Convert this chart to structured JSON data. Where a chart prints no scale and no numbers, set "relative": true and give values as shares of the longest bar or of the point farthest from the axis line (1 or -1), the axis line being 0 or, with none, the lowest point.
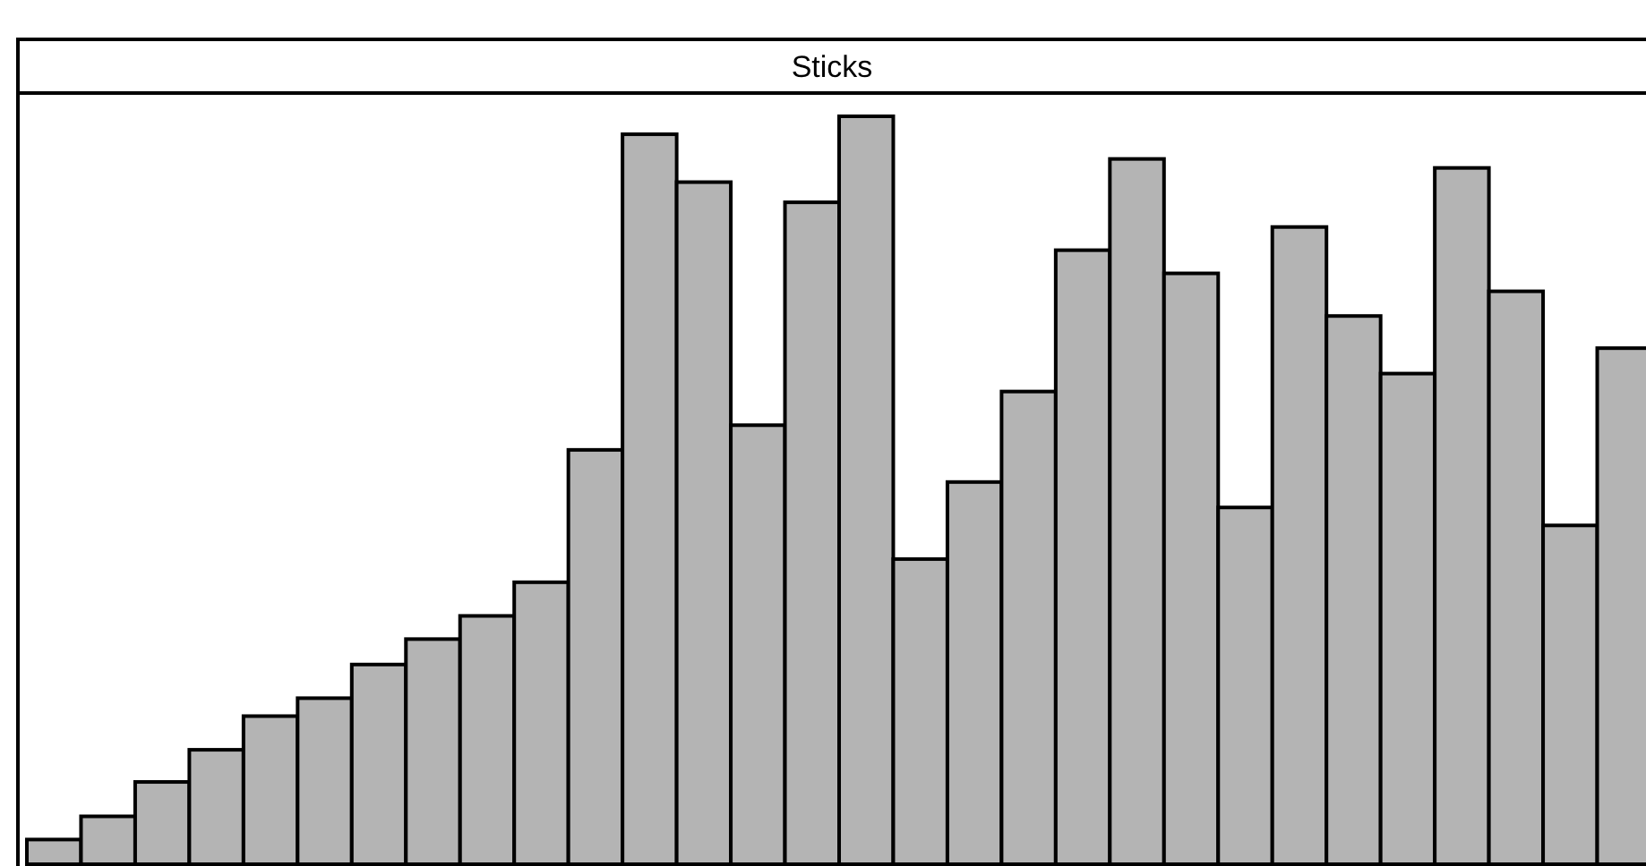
{
  "chart_data": {
    "type": "bar",
    "title": "Sticks",
    "relative": true,
    "categories": [
      null,
      null,
      null,
      null,
      null,
      null,
      null,
      null,
      null,
      null,
      null,
      null,
      null,
      null,
      null,
      null,
      null,
      null,
      null,
      null,
      null,
      null,
      null,
      null,
      null,
      null,
      null,
      null,
      null,
      null
    ],
    "values": [
      0.033,
      0.064,
      0.11,
      0.153,
      0.198,
      0.222,
      0.267,
      0.301,
      0.332,
      0.377,
      0.554,
      0.976,
      0.912,
      0.587,
      0.885,
      1,
      0.408,
      0.511,
      0.632,
      0.821,
      0.943,
      0.79,
      0.477,
      0.852,
      0.733,
      0.656,
      0.931,
      0.766,
      0.453,
      0.69
    ],
    "color": "#b4b4b4"
  }
}
